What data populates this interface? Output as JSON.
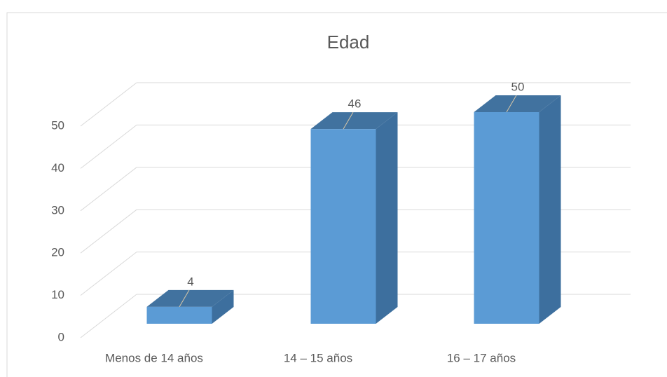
{
  "chart_data": {
    "type": "bar3d",
    "title": "Edad",
    "categories": [
      "Menos de 14 años",
      "14 – 15 años",
      "16 – 17 años"
    ],
    "values": [
      4,
      46,
      50
    ],
    "color": "#5b9bd5",
    "ylim": [
      0,
      50
    ],
    "yticks": [
      0,
      10,
      20,
      30,
      40,
      50
    ],
    "grid": true
  }
}
